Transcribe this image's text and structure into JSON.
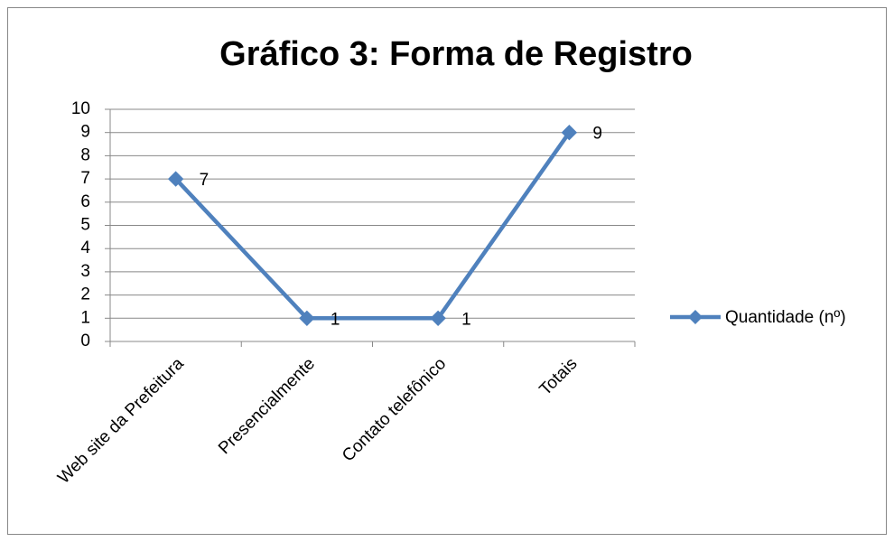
{
  "chart_data": {
    "type": "line",
    "title": "Gráfico 3: Forma de Registro",
    "categories": [
      "Web site da Prefeitura",
      "Presencialmente",
      "Contato telefônico",
      "Totais"
    ],
    "series": [
      {
        "name": "Quantidade (nº)",
        "color": "#4f81bd",
        "values": [
          7,
          1,
          1,
          9
        ]
      }
    ],
    "ylim": [
      0,
      10
    ],
    "yticks": [
      0,
      1,
      2,
      3,
      4,
      5,
      6,
      7,
      8,
      9,
      10
    ],
    "grid": true,
    "legend": "right"
  }
}
